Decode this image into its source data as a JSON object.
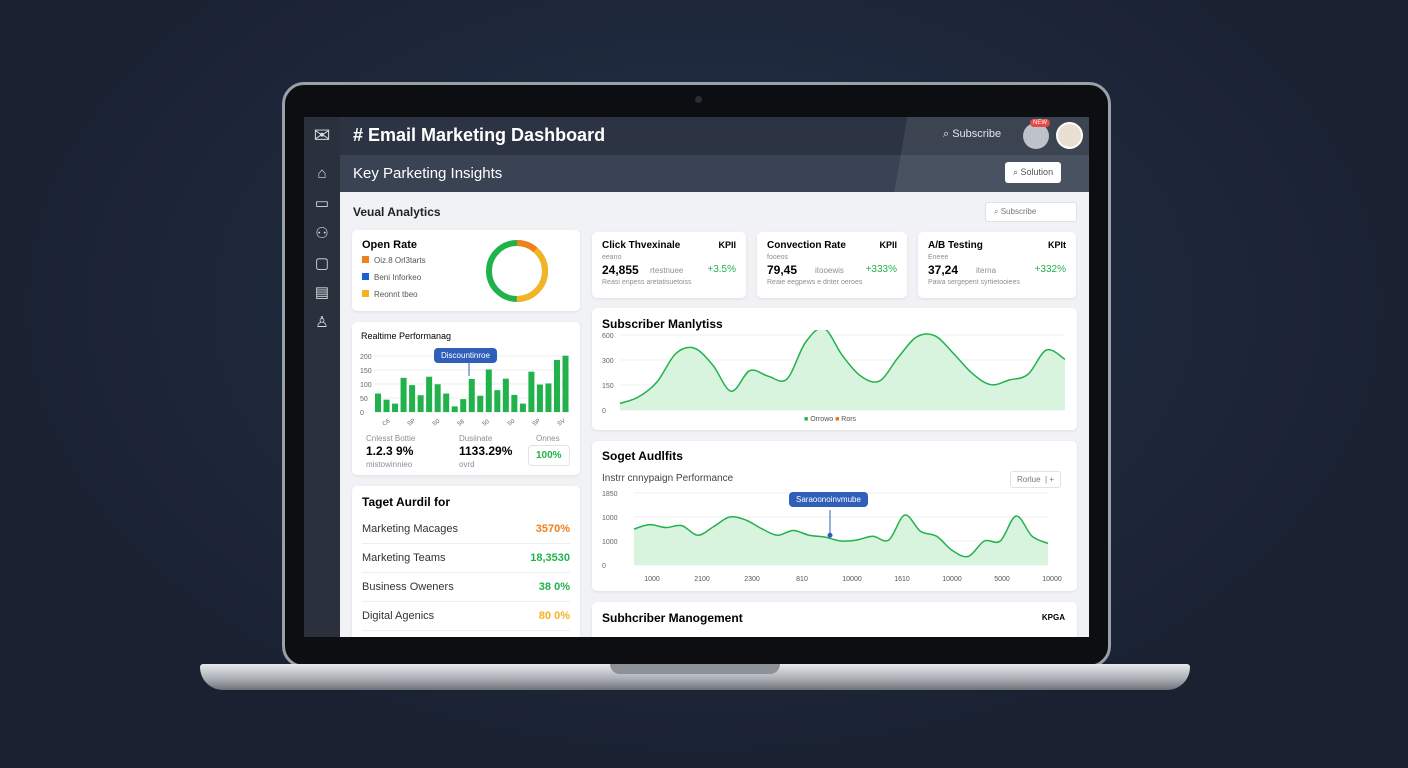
{
  "header": {
    "title": "# Email Marketing Dashboard",
    "search_label": "Subscribe",
    "badge": "NEW"
  },
  "subheader": {
    "title": "Key Parketing Insights",
    "button_label": "Solution"
  },
  "section": {
    "title": "Veual Analytics",
    "search_label": "Subscribe"
  },
  "open_rate": {
    "title": "Open Rate",
    "legend": [
      {
        "label": "Oiz.8 Orl3tarts",
        "color": "#f07f1d"
      },
      {
        "label": "Beni Inforkeo",
        "color": "#1f5fd6"
      },
      {
        "label": "Reonnt tbeo",
        "color": "#f5b324"
      }
    ],
    "donut": {
      "green": 0.5,
      "orange": 0.12,
      "yellow": 0.38
    }
  },
  "realtime": {
    "title": "Realtime Performanag",
    "tooltip": "Discountinroe",
    "stats": [
      {
        "label": "Cnlesst Bottie",
        "value": "1.2.3 9%",
        "sub": "mistowinnieo"
      },
      {
        "label": "Dusiinate",
        "value": "1133.29%",
        "sub": "ovrd"
      },
      {
        "label": "Onnes",
        "value": "100%"
      }
    ]
  },
  "kpis": [
    {
      "title": "Click Thvexinale",
      "tag": "KPII",
      "sub": "eeano",
      "value": "24,855",
      "unit": "rtestnuee",
      "change": "+3.5%",
      "note": "Reasi enpess aretatisuetoiss"
    },
    {
      "title": "Convection Rate",
      "tag": "KPII",
      "sub": "fooeos",
      "value": "79,45",
      "unit": "itooewis",
      "change": "+333%",
      "note": "Reaie eegpews e dnter oeroes"
    },
    {
      "title": "A/B Testing",
      "tag": "KPIt",
      "sub": "Eneee",
      "value": "37,24",
      "unit": "iterna",
      "change": "+332%",
      "note": "Pawa sergepent syrtietooiees"
    }
  ],
  "subscriber": {
    "title": "Subscriber Manlytiss",
    "legend": [
      {
        "label": "Orrowo",
        "color": "#22b24c"
      },
      {
        "label": "Rors",
        "color": "#e0752a"
      }
    ]
  },
  "audits": {
    "title": "Soget Audlfits",
    "subtitle": "Instrr cnnypaign Performance",
    "button_label": "Rorlue",
    "tooltip": "Saraoonoinvmube"
  },
  "audience": {
    "title": "Taget Aurdil for",
    "rows": [
      {
        "label": "Marketing Macages",
        "value": "3570%",
        "color": "o"
      },
      {
        "label": "Marketing Teams",
        "value": "18,3530",
        "color": "g"
      },
      {
        "label": "Business Oweners",
        "value": "38 0%",
        "color": "g"
      },
      {
        "label": "Digital Agenics",
        "value": "80 0%",
        "color": "y"
      }
    ]
  },
  "management": {
    "title": "Subhcriber Manogement",
    "tag": "KPGA"
  },
  "chart_data": [
    {
      "type": "bar",
      "title": "Realtime Performanag",
      "yticks": [
        "0",
        "50",
        "100",
        "150",
        "200"
      ],
      "xticks": [
        "C6",
        "SP",
        "S0",
        "58",
        "50",
        "S0",
        "SP",
        "SV"
      ],
      "values": [
        66,
        44,
        30,
        122,
        96,
        60,
        126,
        99,
        66,
        20,
        46,
        118,
        58,
        152,
        78,
        119,
        61,
        30,
        144,
        98,
        102,
        186,
        201
      ],
      "color": "#22b24c"
    },
    {
      "type": "area",
      "title": "Subscriber Manlytiss",
      "yticks": [
        "0",
        "150",
        "300",
        "600"
      ],
      "ylim": [
        0,
        800
      ],
      "values": [
        70,
        140,
        300,
        600,
        660,
        480,
        200,
        420,
        360,
        330,
        720,
        870,
        580,
        360,
        310,
        560,
        780,
        790,
        600,
        390,
        270,
        320,
        380,
        640,
        540
      ],
      "color": "#22b24c"
    },
    {
      "type": "area",
      "title": "Instrr cnnypaign Performance",
      "yticks": [
        "0",
        "1000",
        "1000",
        "1850"
      ],
      "xticks": [
        "1000",
        "2100",
        "2300",
        "810",
        "10000",
        "1610",
        "10000",
        "5000",
        "10000"
      ],
      "ylim": [
        0,
        1500
      ],
      "values": [
        750,
        840,
        780,
        820,
        620,
        800,
        1000,
        940,
        760,
        620,
        720,
        620,
        580,
        500,
        520,
        600,
        520,
        1040,
        700,
        600,
        300,
        180,
        500,
        500,
        1020,
        600,
        450
      ],
      "color": "#22b24c"
    }
  ]
}
